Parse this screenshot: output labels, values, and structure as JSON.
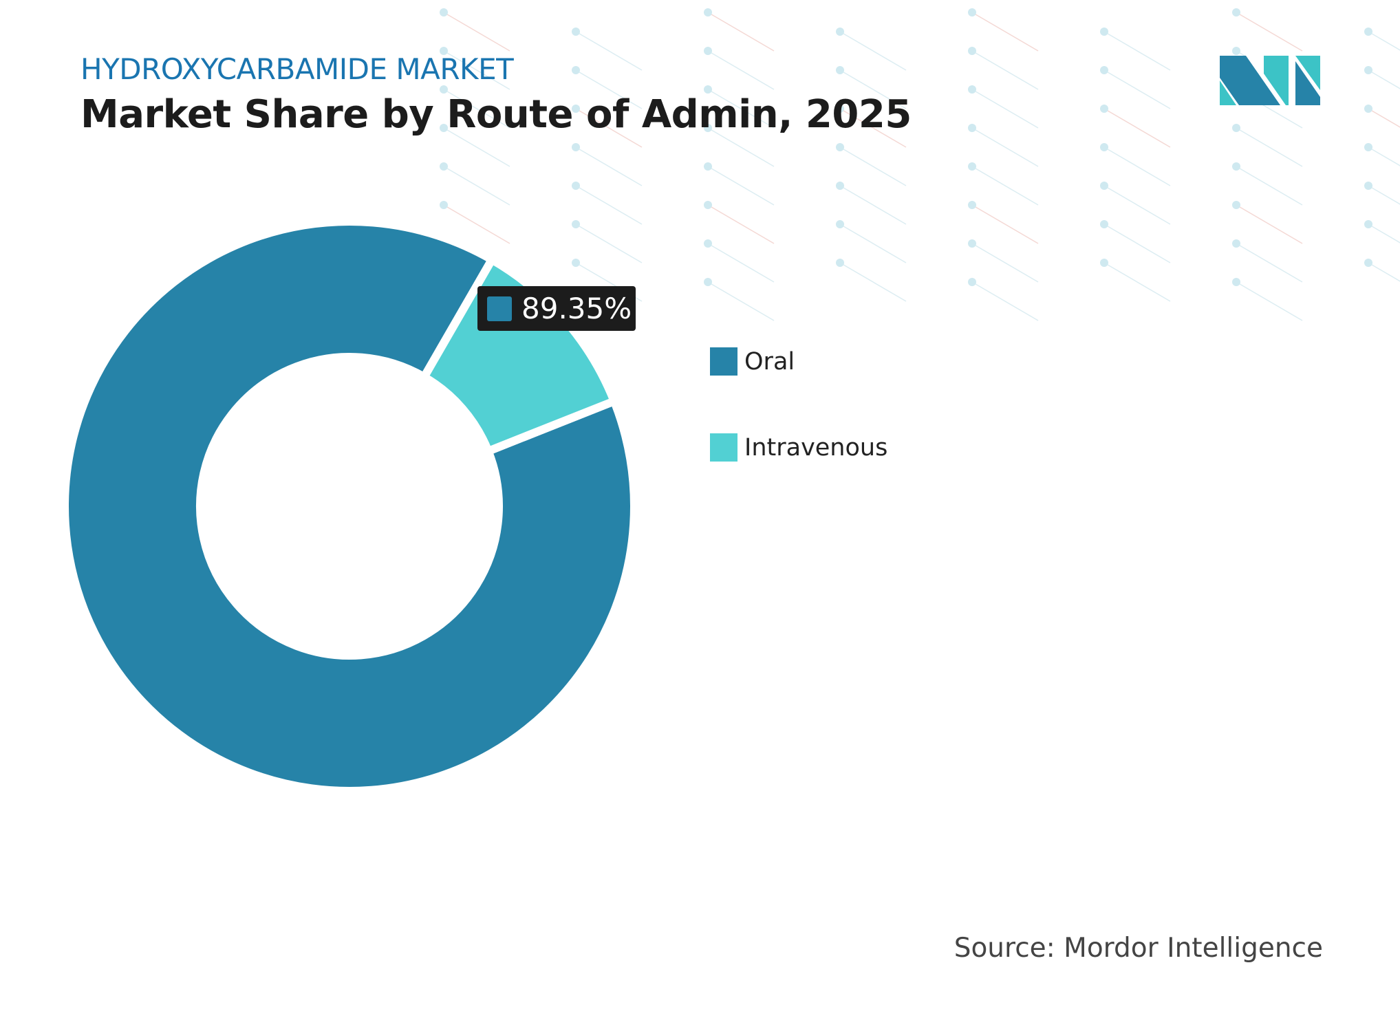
{
  "header": {
    "kicker": "HYDROXYCARBAMIDE MARKET",
    "title": "Market Share by Route of Admin, 2025"
  },
  "chart_data": {
    "type": "pie",
    "variant": "donut",
    "categories": [
      "Oral",
      "Intravenous"
    ],
    "values": [
      89.35,
      10.65
    ],
    "unit": "%",
    "colors": [
      "#2683a8",
      "#52d0d3"
    ],
    "data_labels": [
      {
        "category": "Oral",
        "text": "89.35%"
      }
    ],
    "legend": {
      "position": "right",
      "entries": [
        "Oral",
        "Intravenous"
      ]
    }
  },
  "footer": {
    "source": "Source: Mordor Intelligence"
  },
  "logo": {
    "colors": [
      "#2683a8",
      "#3cc3c6"
    ]
  }
}
